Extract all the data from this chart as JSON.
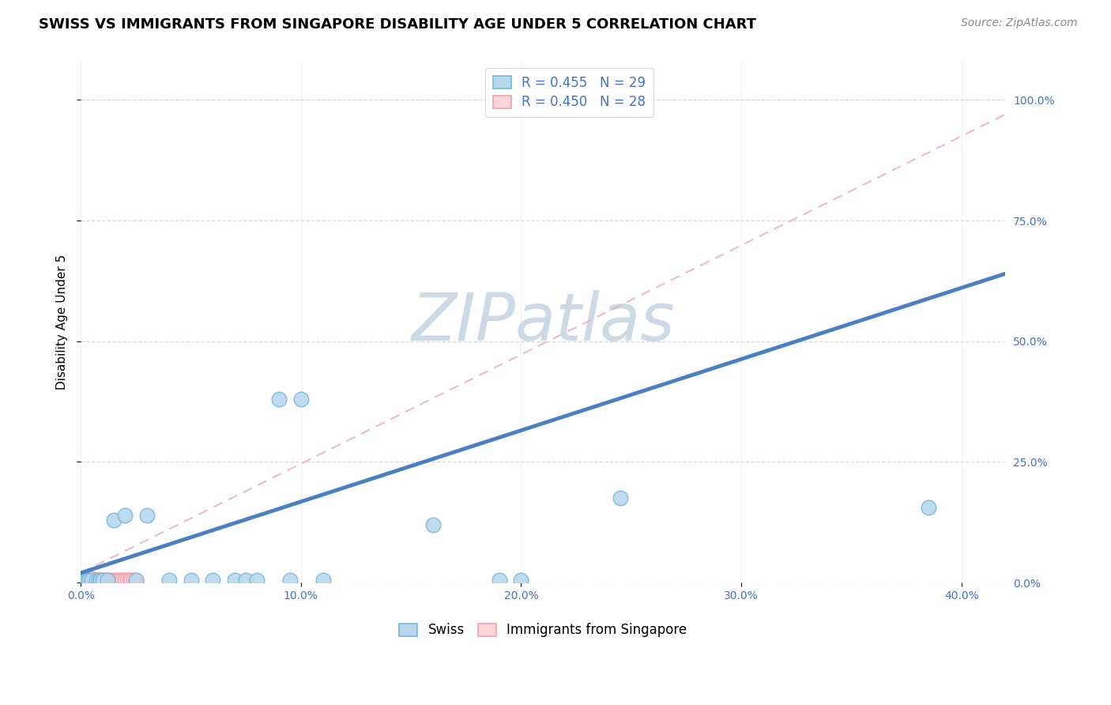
{
  "title": "SWISS VS IMMIGRANTS FROM SINGAPORE DISABILITY AGE UNDER 5 CORRELATION CHART",
  "source": "Source: ZipAtlas.com",
  "ylabel": "Disability Age Under 5",
  "watermark": "ZIPatlas",
  "xlim": [
    0.0,
    0.42
  ],
  "ylim": [
    0.0,
    1.08
  ],
  "xtick_values": [
    0.0,
    0.1,
    0.2,
    0.3,
    0.4
  ],
  "ytick_values": [
    0.0,
    0.25,
    0.5,
    0.75,
    1.0
  ],
  "swiss_color": "#7ab8d9",
  "swiss_face_color": "#b8d8ee",
  "immigrants_color": "#f4a0b0",
  "immigrants_face_color": "#fcd5db",
  "swiss_R": 0.455,
  "swiss_N": 29,
  "immigrants_R": 0.45,
  "immigrants_N": 28,
  "legend_label_swiss": "Swiss",
  "legend_label_immigrants": "Immigrants from Singapore",
  "swiss_x": [
    0.001,
    0.002,
    0.003,
    0.004,
    0.005,
    0.007,
    0.008,
    0.009,
    0.01,
    0.012,
    0.015,
    0.02,
    0.025,
    0.03,
    0.04,
    0.05,
    0.06,
    0.07,
    0.075,
    0.08,
    0.09,
    0.095,
    0.1,
    0.11,
    0.16,
    0.19,
    0.2,
    0.245,
    0.385
  ],
  "swiss_y": [
    0.005,
    0.005,
    0.005,
    0.005,
    0.005,
    0.005,
    0.005,
    0.005,
    0.005,
    0.005,
    0.13,
    0.14,
    0.005,
    0.14,
    0.005,
    0.005,
    0.005,
    0.005,
    0.005,
    0.005,
    0.38,
    0.005,
    0.38,
    0.005,
    0.12,
    0.005,
    0.005,
    0.175,
    0.155
  ],
  "immigrants_x": [
    0.001,
    0.002,
    0.003,
    0.003,
    0.004,
    0.004,
    0.005,
    0.005,
    0.006,
    0.007,
    0.008,
    0.009,
    0.01,
    0.011,
    0.012,
    0.013,
    0.014,
    0.015,
    0.016,
    0.017,
    0.018,
    0.019,
    0.02,
    0.021,
    0.022,
    0.023,
    0.024,
    0.025
  ],
  "immigrants_y": [
    0.005,
    0.005,
    0.005,
    0.008,
    0.005,
    0.008,
    0.005,
    0.008,
    0.005,
    0.005,
    0.005,
    0.005,
    0.005,
    0.005,
    0.005,
    0.005,
    0.005,
    0.005,
    0.005,
    0.005,
    0.005,
    0.005,
    0.005,
    0.005,
    0.005,
    0.005,
    0.005,
    0.005
  ],
  "swiss_trendline_x": [
    0.0,
    0.42
  ],
  "swiss_trendline_y": [
    0.02,
    0.64
  ],
  "immigrants_trendline_x": [
    0.0,
    0.42
  ],
  "immigrants_trendline_y": [
    0.02,
    0.97
  ],
  "grid_color": "#d8d8d8",
  "background_color": "#ffffff",
  "title_fontsize": 13,
  "axis_label_fontsize": 11,
  "tick_fontsize": 10,
  "legend_fontsize": 12,
  "source_fontsize": 10,
  "watermark_fontsize": 60,
  "watermark_color": "#cdd9e5",
  "right_ytick_color": "#4472c4",
  "bottom_xtick_color": "#4472c4"
}
